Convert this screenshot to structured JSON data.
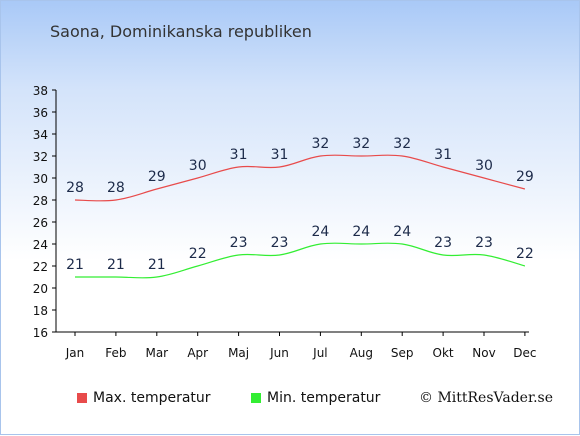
{
  "title": "Saona, Dominikanska republiken",
  "copyright": "© MittResVader.se",
  "legend": {
    "max_label": "Max. temperatur",
    "min_label": "Min. temperatur"
  },
  "colors": {
    "max": "#e84b4b",
    "min": "#33ee33"
  },
  "chart_data": {
    "type": "line",
    "categories": [
      "Jan",
      "Feb",
      "Mar",
      "Apr",
      "Maj",
      "Jun",
      "Jul",
      "Aug",
      "Sep",
      "Okt",
      "Nov",
      "Dec"
    ],
    "series": [
      {
        "name": "Max. temperatur",
        "values": [
          28,
          28,
          29,
          30,
          31,
          31,
          32,
          32,
          32,
          31,
          30,
          29
        ]
      },
      {
        "name": "Min. temperatur",
        "values": [
          21,
          21,
          21,
          22,
          23,
          23,
          24,
          24,
          24,
          23,
          23,
          22
        ]
      }
    ],
    "ylim": [
      16,
      38
    ],
    "yticks": [
      16,
      18,
      20,
      22,
      24,
      26,
      28,
      30,
      32,
      34,
      36,
      38
    ],
    "grid": false,
    "legend_position": "bottom"
  }
}
